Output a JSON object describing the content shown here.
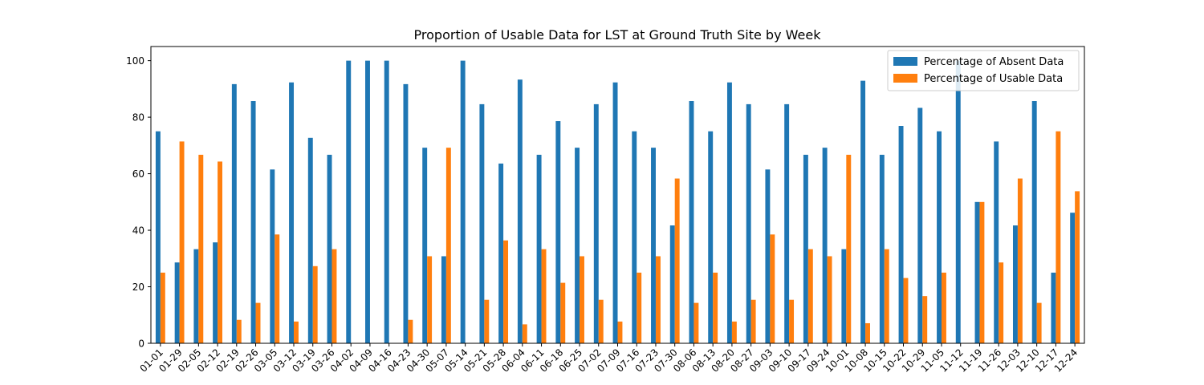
{
  "chart_data": {
    "type": "bar",
    "title": "Proportion of Usable Data for LST at Ground Truth Site by Week",
    "xlabel": "",
    "ylabel": "",
    "ylim": [
      0,
      105
    ],
    "yticks": [
      0,
      20,
      40,
      60,
      80,
      100
    ],
    "grid": false,
    "legend_position": "top-right",
    "categories": [
      "01-01",
      "01-29",
      "02-05",
      "02-12",
      "02-19",
      "02-26",
      "03-05",
      "03-12",
      "03-19",
      "03-26",
      "04-02",
      "04-09",
      "04-16",
      "04-23",
      "04-30",
      "05-07",
      "05-14",
      "05-21",
      "05-28",
      "06-04",
      "06-11",
      "06-18",
      "06-25",
      "07-02",
      "07-09",
      "07-16",
      "07-23",
      "07-30",
      "08-06",
      "08-13",
      "08-20",
      "08-27",
      "09-03",
      "09-10",
      "09-17",
      "09-24",
      "10-01",
      "10-08",
      "10-15",
      "10-22",
      "10-29",
      "11-05",
      "11-12",
      "11-19",
      "11-26",
      "12-03",
      "12-10",
      "12-17",
      "12-24"
    ],
    "series": [
      {
        "name": "Percentage of Absent Data",
        "color": "#1f77b4",
        "values": [
          75,
          28.6,
          33.3,
          35.7,
          91.7,
          85.7,
          61.5,
          92.3,
          72.7,
          66.7,
          100,
          100,
          100,
          91.7,
          69.2,
          30.8,
          100,
          84.6,
          63.6,
          93.3,
          66.7,
          78.6,
          69.2,
          84.6,
          92.3,
          75,
          69.2,
          41.7,
          85.7,
          75,
          92.3,
          84.6,
          61.5,
          84.6,
          66.7,
          69.2,
          33.3,
          92.9,
          66.7,
          76.9,
          83.3,
          75,
          100,
          50,
          71.4,
          41.7,
          85.7,
          25,
          46.2
        ]
      },
      {
        "name": "Percentage of Usable Data",
        "color": "#ff7f0e",
        "values": [
          25,
          71.4,
          66.7,
          64.3,
          8.3,
          14.3,
          38.5,
          7.7,
          27.3,
          33.3,
          0,
          0,
          0,
          8.3,
          30.8,
          69.2,
          0,
          15.4,
          36.4,
          6.7,
          33.3,
          21.4,
          30.8,
          15.4,
          7.7,
          25,
          30.8,
          58.3,
          14.3,
          25,
          7.7,
          15.4,
          38.5,
          15.4,
          33.3,
          30.8,
          66.7,
          7.1,
          33.3,
          23.1,
          16.7,
          25,
          0,
          50,
          28.6,
          58.3,
          14.3,
          75,
          53.8
        ]
      }
    ]
  }
}
